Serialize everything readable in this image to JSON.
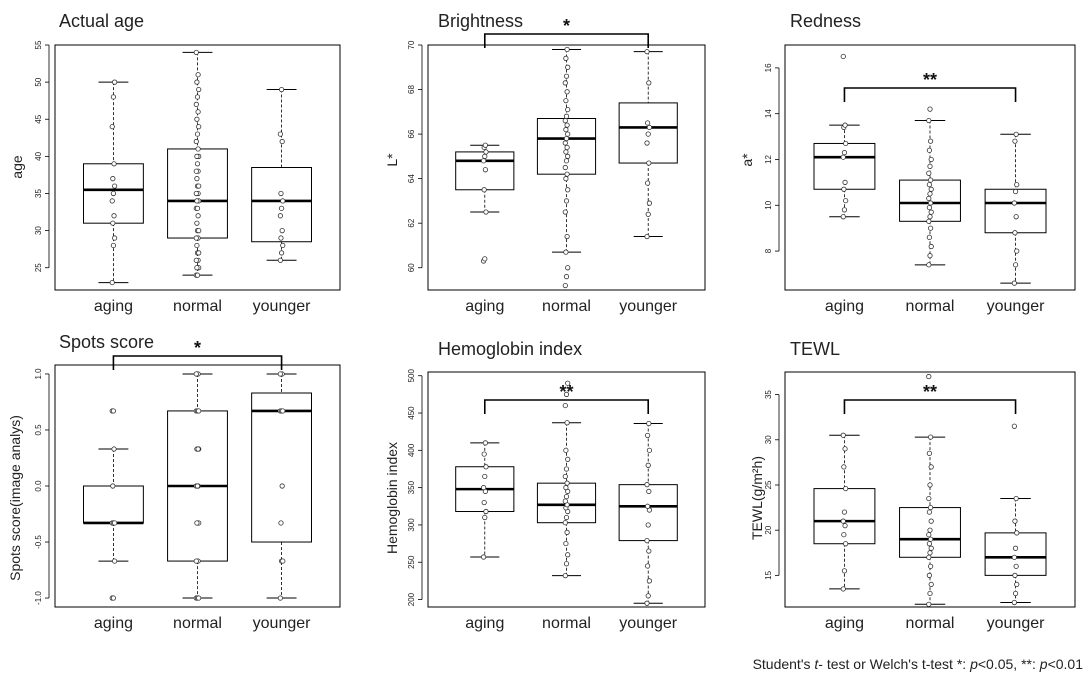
{
  "groups": [
    "aging",
    "normal",
    "younger"
  ],
  "footnote": {
    "prefix": "Student's ",
    "t_italic": "t",
    "middle": "- test or Welch's t-test *: ",
    "p1": "p",
    "p1_rest": "<0.05, **: ",
    "p2": "p",
    "p2_rest": "<0.01"
  },
  "chart_data": [
    {
      "type": "box",
      "title": "Actual age",
      "ylabel": "age",
      "ylim": [
        22,
        55
      ],
      "yticks": [
        25,
        30,
        35,
        40,
        45,
        50,
        55
      ],
      "categories": [
        "aging",
        "normal",
        "younger"
      ],
      "boxes": [
        {
          "min": 23,
          "q1": 31,
          "median": 35.5,
          "q3": 39,
          "max": 50
        },
        {
          "min": 24,
          "q1": 29,
          "median": 34,
          "q3": 41,
          "max": 54
        },
        {
          "min": 26,
          "q1": 28.5,
          "median": 34,
          "q3": 38.5,
          "max": 49
        }
      ],
      "points": [
        [
          23,
          28,
          29,
          31,
          32,
          34,
          35,
          36,
          37,
          39,
          44,
          48,
          50
        ],
        [
          24,
          24,
          25,
          25,
          26,
          26,
          27,
          27,
          28,
          29,
          29,
          30,
          30,
          31,
          32,
          33,
          33,
          34,
          34,
          35,
          35,
          36,
          36,
          37,
          38,
          38,
          39,
          40,
          40,
          41,
          42,
          43,
          44,
          45,
          46,
          47,
          48,
          49,
          50,
          51,
          54
        ],
        [
          26,
          27,
          28,
          29,
          30,
          32,
          33,
          34,
          35,
          42,
          43,
          49
        ]
      ],
      "significance": null
    },
    {
      "type": "box",
      "title": "Brightness",
      "ylabel": "L*",
      "ylim": [
        59,
        70
      ],
      "yticks": [
        60,
        62,
        64,
        66,
        68,
        70
      ],
      "categories": [
        "aging",
        "normal",
        "younger"
      ],
      "boxes": [
        {
          "min": 62.5,
          "q1": 63.5,
          "median": 64.8,
          "q3": 65.2,
          "max": 65.5
        },
        {
          "min": 60.7,
          "q1": 64.2,
          "median": 65.8,
          "q3": 66.7,
          "max": 69.8
        },
        {
          "min": 61.4,
          "q1": 64.7,
          "median": 66.3,
          "q3": 67.4,
          "max": 69.7
        }
      ],
      "points": [
        [
          60.3,
          60.4,
          62.5,
          63.5,
          64.4,
          64.8,
          65.0,
          65.2,
          65.4,
          65.5
        ],
        [
          59.2,
          59.6,
          60.0,
          60.7,
          61.4,
          62.5,
          63.0,
          63.5,
          64.0,
          64.2,
          64.5,
          64.8,
          65.0,
          65.2,
          65.4,
          65.6,
          65.8,
          66.0,
          66.2,
          66.4,
          66.6,
          66.8,
          67.1,
          67.5,
          67.9,
          68.3,
          68.6,
          69.0,
          69.4,
          69.8
        ],
        [
          61.4,
          62.4,
          62.9,
          63.8,
          64.7,
          65.6,
          66.0,
          66.3,
          66.5,
          68.3,
          69.7
        ]
      ],
      "significance": {
        "from": 0,
        "to": 2,
        "label": "*"
      }
    },
    {
      "type": "box",
      "title": "Redness",
      "ylabel": "a*",
      "ylim": [
        6.3,
        17
      ],
      "yticks": [
        8,
        10,
        12,
        14,
        16
      ],
      "categories": [
        "aging",
        "normal",
        "younger"
      ],
      "boxes": [
        {
          "min": 9.5,
          "q1": 10.7,
          "median": 12.1,
          "q3": 12.7,
          "max": 13.5
        },
        {
          "min": 7.4,
          "q1": 9.3,
          "median": 10.1,
          "q3": 11.1,
          "max": 13.7
        },
        {
          "min": 6.6,
          "q1": 8.8,
          "median": 10.1,
          "q3": 10.7,
          "max": 13.1
        }
      ],
      "points": [
        [
          9.5,
          9.8,
          10.2,
          10.7,
          11.0,
          12.1,
          12.3,
          12.7,
          13.4,
          13.5,
          16.5
        ],
        [
          7.4,
          7.8,
          8.2,
          8.6,
          9.0,
          9.3,
          9.5,
          9.7,
          9.9,
          10.1,
          10.3,
          10.5,
          10.7,
          10.9,
          11.1,
          11.4,
          11.7,
          12.0,
          12.4,
          12.8,
          13.7,
          14.2
        ],
        [
          6.6,
          7.4,
          8.0,
          8.8,
          9.5,
          10.1,
          10.6,
          10.9,
          12.8,
          13.1
        ]
      ],
      "significance": {
        "from": 0,
        "to": 2,
        "label": "**"
      }
    },
    {
      "type": "box",
      "title": "Spots score",
      "ylabel": "Spots score(image analys)",
      "ylim": [
        -1.08,
        1.08
      ],
      "yticks": [
        -1.0,
        -0.5,
        0.0,
        0.5,
        1.0
      ],
      "ytick_labels": [
        "-1.0",
        "-0.5",
        "0.0",
        "0.5",
        "1.0"
      ],
      "categories": [
        "aging",
        "normal",
        "younger"
      ],
      "boxes": [
        {
          "min": -0.67,
          "q1": -0.33,
          "median": -0.33,
          "q3": 0.0,
          "max": 0.33
        },
        {
          "min": -1.0,
          "q1": -0.67,
          "median": 0.0,
          "q3": 0.67,
          "max": 1.0
        },
        {
          "min": -1.0,
          "q1": -0.5,
          "median": 0.67,
          "q3": 0.83,
          "max": 1.0
        }
      ],
      "points": [
        [
          -1.0,
          -1.0,
          -0.67,
          -0.33,
          -0.33,
          -0.33,
          -0.33,
          -0.33,
          0.0,
          0.33,
          0.67,
          0.67
        ],
        [
          -1.0,
          -1.0,
          -1.0,
          -0.67,
          -0.67,
          -0.67,
          -0.33,
          -0.33,
          -0.33,
          0.0,
          0.0,
          0.0,
          0.33,
          0.33,
          0.33,
          0.67,
          0.67,
          0.67,
          1.0,
          1.0,
          1.0
        ],
        [
          -1.0,
          -0.67,
          -0.67,
          -0.33,
          0.0,
          0.67,
          0.67,
          0.67,
          1.0,
          1.0,
          1.0
        ]
      ],
      "significance": {
        "from": 0,
        "to": 2,
        "label": "*"
      }
    },
    {
      "type": "box",
      "title": "Hemoglobin index",
      "ylabel": "Hemoglobin index",
      "ylim": [
        190,
        505
      ],
      "yticks": [
        200,
        250,
        300,
        350,
        400,
        450,
        500
      ],
      "categories": [
        "aging",
        "normal",
        "younger"
      ],
      "boxes": [
        {
          "min": 257,
          "q1": 318,
          "median": 348,
          "q3": 378,
          "max": 410
        },
        {
          "min": 232,
          "q1": 303,
          "median": 327,
          "q3": 356,
          "max": 437
        },
        {
          "min": 195,
          "q1": 279,
          "median": 325,
          "q3": 354,
          "max": 436
        }
      ],
      "points": [
        [
          257,
          310,
          318,
          330,
          345,
          350,
          365,
          378,
          395,
          410
        ],
        [
          232,
          248,
          260,
          275,
          290,
          303,
          310,
          318,
          323,
          327,
          332,
          338,
          345,
          350,
          356,
          365,
          375,
          388,
          400,
          437,
          460,
          475,
          490
        ],
        [
          195,
          205,
          225,
          245,
          265,
          279,
          300,
          320,
          325,
          345,
          354,
          380,
          400,
          420,
          436
        ]
      ],
      "significance": {
        "from": 0,
        "to": 2,
        "label": "**"
      }
    },
    {
      "type": "box",
      "title": "TEWL",
      "ylabel": "TEWL(g/m²h)",
      "ylim": [
        11.5,
        37.5
      ],
      "yticks": [
        15,
        20,
        25,
        30,
        35
      ],
      "categories": [
        "aging",
        "normal",
        "younger"
      ],
      "boxes": [
        {
          "min": 13.5,
          "q1": 18.5,
          "median": 21.0,
          "q3": 24.6,
          "max": 30.5
        },
        {
          "min": 11.8,
          "q1": 17.0,
          "median": 19.0,
          "q3": 22.5,
          "max": 30.3
        },
        {
          "min": 12.0,
          "q1": 15.0,
          "median": 17.0,
          "q3": 19.7,
          "max": 23.5
        }
      ],
      "points": [
        [
          13.5,
          15.5,
          18.5,
          19.5,
          20.5,
          21.0,
          22.0,
          24.6,
          27.0,
          29.0,
          30.5
        ],
        [
          11.8,
          13.0,
          14.0,
          15.0,
          16.0,
          17.0,
          17.5,
          18.0,
          18.5,
          19.0,
          19.5,
          20.0,
          21.0,
          22.0,
          22.5,
          23.5,
          25.0,
          27.0,
          28.5,
          30.3,
          37.0
        ],
        [
          12.0,
          13.0,
          14.0,
          15.0,
          16.0,
          17.0,
          18.0,
          19.7,
          21.0,
          23.5,
          31.5
        ]
      ],
      "significance": {
        "from": 0,
        "to": 2,
        "label": "**"
      }
    }
  ]
}
